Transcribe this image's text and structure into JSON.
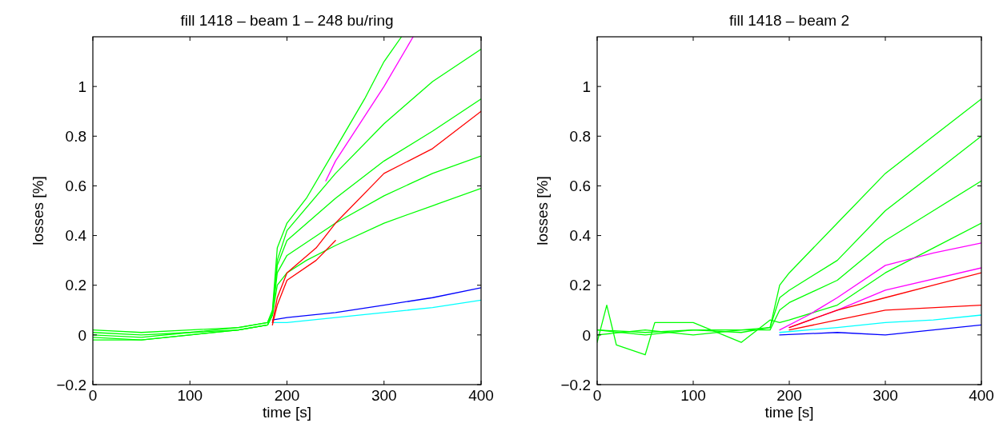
{
  "chart_data": [
    {
      "type": "line",
      "title": "fill 1418 – beam 1 – 248 bu/ring",
      "xlabel": "time [s]",
      "ylabel": "losses [%]",
      "xlim": [
        0,
        400
      ],
      "ylim": [
        -0.2,
        1.2
      ],
      "xticks": [
        0,
        100,
        200,
        300,
        400
      ],
      "yticks": [
        {
          "value": -0.2,
          "label": "−0.2"
        },
        0,
        0.2,
        0.4,
        0.6,
        0.8,
        1
      ],
      "series": [
        {
          "color": "#00ffff",
          "x": [
            185,
            200,
            250,
            300,
            350,
            400
          ],
          "values": [
            0.05,
            0.05,
            0.07,
            0.09,
            0.11,
            0.14
          ]
        },
        {
          "color": "#0000ff",
          "x": [
            185,
            200,
            250,
            300,
            350,
            400
          ],
          "values": [
            0.06,
            0.07,
            0.09,
            0.12,
            0.15,
            0.19
          ]
        },
        {
          "color": "#ff00ff",
          "x": [
            240,
            250,
            300,
            330
          ],
          "values": [
            0.62,
            0.7,
            1.0,
            1.2
          ]
        },
        {
          "color": "#00ff00",
          "x": [
            0,
            50,
            100,
            150,
            180,
            185,
            190,
            200,
            220,
            250,
            280,
            300,
            318
          ],
          "values": [
            0.02,
            0.01,
            0.02,
            0.03,
            0.05,
            0.1,
            0.35,
            0.45,
            0.55,
            0.75,
            0.95,
            1.1,
            1.2
          ]
        },
        {
          "color": "#00ff00",
          "x": [
            0,
            50,
            100,
            150,
            180,
            185,
            190,
            200,
            250,
            300,
            350,
            400
          ],
          "values": [
            0.01,
            0,
            0.01,
            0.03,
            0.05,
            0.09,
            0.3,
            0.42,
            0.65,
            0.85,
            1.02,
            1.15
          ]
        },
        {
          "color": "#00ff00",
          "x": [
            0,
            50,
            100,
            150,
            180,
            185,
            190,
            200,
            250,
            300,
            350,
            400
          ],
          "values": [
            0,
            -0.01,
            0.01,
            0.02,
            0.04,
            0.08,
            0.28,
            0.38,
            0.55,
            0.7,
            0.82,
            0.95
          ]
        },
        {
          "color": "#00ff00",
          "x": [
            0,
            50,
            100,
            150,
            180,
            185,
            190,
            200,
            250,
            300,
            350,
            400
          ],
          "values": [
            -0.01,
            -0.02,
            0,
            0.02,
            0.04,
            0.08,
            0.25,
            0.32,
            0.45,
            0.56,
            0.65,
            0.72
          ]
        },
        {
          "color": "#00ff00",
          "x": [
            0,
            50,
            100,
            150,
            180,
            185,
            190,
            200,
            220,
            250,
            300,
            350,
            400
          ],
          "values": [
            -0.02,
            -0.02,
            0,
            0.02,
            0.04,
            0.08,
            0.2,
            0.25,
            0.3,
            0.36,
            0.45,
            0.52,
            0.59
          ]
        },
        {
          "color": "#ff0000",
          "x": [
            185,
            190,
            200,
            230,
            250,
            300,
            350,
            400
          ],
          "values": [
            0.05,
            0.15,
            0.25,
            0.35,
            0.45,
            0.65,
            0.75,
            0.9
          ]
        },
        {
          "color": "#ff0000",
          "x": [
            185,
            190,
            200,
            230,
            250
          ],
          "values": [
            0.04,
            0.12,
            0.22,
            0.3,
            0.38
          ]
        }
      ]
    },
    {
      "type": "line",
      "title": "fill 1418 – beam 2",
      "xlabel": "time [s]",
      "ylabel": "losses [%]",
      "xlim": [
        0,
        400
      ],
      "ylim": [
        -0.2,
        1.2
      ],
      "xticks": [
        0,
        100,
        200,
        300,
        400
      ],
      "yticks": [
        {
          "value": -0.2,
          "label": "−0.2"
        },
        0,
        0.2,
        0.4,
        0.6,
        0.8,
        1
      ],
      "series": [
        {
          "color": "#0000ff",
          "x": [
            190,
            250,
            300,
            350,
            400
          ],
          "values": [
            0,
            0.01,
            0,
            0.02,
            0.04
          ]
        },
        {
          "color": "#00ffff",
          "x": [
            190,
            250,
            300,
            350,
            400
          ],
          "values": [
            0.01,
            0.03,
            0.05,
            0.06,
            0.08
          ]
        },
        {
          "color": "#00ff00",
          "x": [
            0,
            10,
            20,
            50,
            60,
            100,
            150,
            180,
            190,
            200,
            250,
            300,
            350,
            400
          ],
          "values": [
            -0.03,
            0.12,
            -0.04,
            -0.08,
            0.05,
            0.05,
            -0.03,
            0.06,
            0.05,
            0.06,
            0.12,
            0.25,
            0.35,
            0.45
          ]
        },
        {
          "color": "#00ff00",
          "x": [
            0,
            50,
            100,
            150,
            180,
            190,
            200,
            250,
            300,
            350,
            400
          ],
          "values": [
            0.02,
            0.01,
            0.02,
            0.01,
            0.03,
            0.15,
            0.18,
            0.3,
            0.5,
            0.65,
            0.8
          ]
        },
        {
          "color": "#00ff00",
          "x": [
            0,
            50,
            100,
            150,
            180,
            190,
            200,
            250,
            300,
            350,
            400
          ],
          "values": [
            0,
            0.02,
            0,
            0.02,
            0.02,
            0.1,
            0.13,
            0.22,
            0.38,
            0.5,
            0.62
          ]
        },
        {
          "color": "#00ff00",
          "x": [
            0,
            50,
            100,
            150,
            180,
            190,
            200,
            250,
            300,
            350,
            400
          ],
          "values": [
            0.02,
            0,
            0.02,
            0.02,
            0.03,
            0.2,
            0.25,
            0.45,
            0.65,
            0.8,
            0.95
          ]
        },
        {
          "color": "#ff00ff",
          "x": [
            190,
            220,
            250,
            300,
            350,
            400
          ],
          "values": [
            0.02,
            0.08,
            0.15,
            0.28,
            0.33,
            0.37
          ]
        },
        {
          "color": "#ff00ff",
          "x": [
            200,
            250,
            300,
            400
          ],
          "values": [
            0.03,
            0.1,
            0.18,
            0.27
          ]
        },
        {
          "color": "#ff0000",
          "x": [
            200,
            250,
            300,
            350,
            400
          ],
          "values": [
            0.03,
            0.1,
            0.15,
            0.2,
            0.25
          ]
        },
        {
          "color": "#ff0000",
          "x": [
            200,
            250,
            300,
            400
          ],
          "values": [
            0.02,
            0.06,
            0.1,
            0.12
          ]
        }
      ]
    }
  ]
}
